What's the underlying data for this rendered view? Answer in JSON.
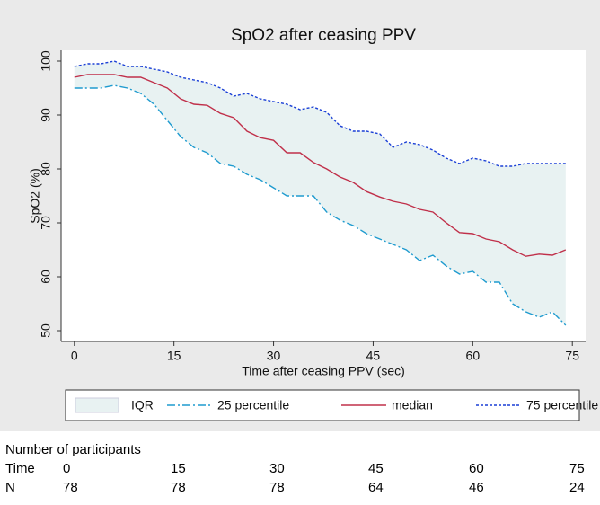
{
  "chart_data": {
    "type": "line",
    "title": "SpO2 after ceasing PPV",
    "x_label": "Time after ceasing PPV (sec)",
    "y_label": "SpO2 (%)",
    "x": [
      0,
      2,
      4,
      6,
      8,
      10,
      12,
      14,
      16,
      18,
      20,
      22,
      24,
      26,
      28,
      30,
      32,
      34,
      36,
      38,
      40,
      42,
      44,
      46,
      48,
      50,
      52,
      54,
      56,
      58,
      60,
      62,
      64,
      66,
      68,
      70,
      72,
      74
    ],
    "band": {
      "name": "IQR",
      "color": "#e8f2f2"
    },
    "series": [
      {
        "name": "25 percentile",
        "color": "#1f9bcf",
        "values": [
          95,
          95,
          95,
          95.5,
          95,
          94,
          92,
          89,
          86,
          84,
          83,
          81,
          80.5,
          79,
          78,
          76.5,
          75,
          75,
          75,
          72,
          70.5,
          69.5,
          68,
          67,
          66,
          65,
          63,
          64,
          62,
          60.5,
          61,
          59,
          59,
          55,
          53.5,
          52.5,
          53.5,
          51
        ]
      },
      {
        "name": "median",
        "color": "#c0304a",
        "values": [
          97,
          97.5,
          97.5,
          97.5,
          97,
          97,
          96,
          95,
          93,
          92,
          91.8,
          90.3,
          89.5,
          87,
          85.8,
          85.3,
          83,
          83,
          81.2,
          80,
          78.5,
          77.5,
          75.8,
          74.8,
          74,
          73.5,
          72.5,
          72,
          70,
          68.2,
          68,
          67,
          66.5,
          65,
          63.8,
          64.2,
          64,
          65
        ]
      },
      {
        "name": "75 percentile",
        "color": "#1a3fd6",
        "values": [
          99,
          99.5,
          99.5,
          100,
          99,
          99,
          98.5,
          98,
          97,
          96.5,
          96,
          95,
          93.5,
          94,
          93,
          92.5,
          92,
          91,
          91.5,
          90.5,
          88,
          87,
          87,
          86.5,
          84,
          85,
          84.5,
          83.5,
          82,
          81,
          82,
          81.5,
          80.5,
          80.5,
          81,
          81,
          81,
          81
        ]
      }
    ],
    "xlim": [
      -2,
      77
    ],
    "ylim": [
      48,
      102
    ],
    "xticks": [
      0,
      15,
      30,
      45,
      60,
      75
    ],
    "yticks": [
      50,
      60,
      70,
      80,
      90,
      100
    ]
  },
  "table": {
    "title": "Number of participants",
    "rows": [
      [
        "Time",
        0,
        15,
        30,
        45,
        60,
        75
      ],
      [
        "N",
        78,
        78,
        78,
        64,
        46,
        24
      ]
    ]
  }
}
